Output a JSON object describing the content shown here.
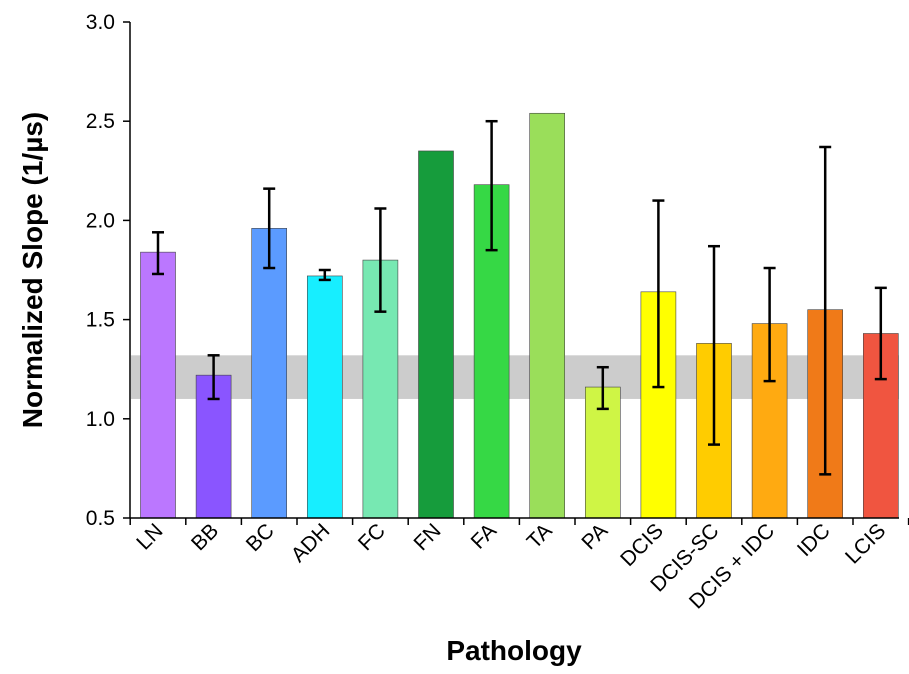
{
  "chart_data": {
    "type": "bar",
    "title": "",
    "xlabel": "Pathology",
    "ylabel": "Normalized Slope (1/µs)",
    "ylim": [
      0.5,
      3.0
    ],
    "yticks": [
      0.5,
      1.0,
      1.5,
      2.0,
      2.5,
      3.0
    ],
    "ytick_labels": [
      "0.5",
      "1.0",
      "1.5",
      "2.0",
      "2.5",
      "3.0"
    ],
    "grid": false,
    "reference_band": {
      "y_low": 1.1,
      "y_high": 1.32,
      "color": "#cccccc"
    },
    "categories": [
      "LN",
      "BB",
      "BC",
      "ADH",
      "FC",
      "FN",
      "FA",
      "TA",
      "PA",
      "DCIS",
      "DCIS-SC",
      "DCIS + IDC",
      "IDC",
      "LCIS"
    ],
    "values": [
      1.84,
      1.22,
      1.96,
      1.72,
      1.8,
      2.35,
      2.18,
      2.54,
      1.16,
      1.64,
      1.38,
      1.48,
      1.55,
      1.43
    ],
    "error_low": [
      1.73,
      1.1,
      1.76,
      1.7,
      1.54,
      null,
      1.85,
      null,
      1.05,
      1.16,
      0.87,
      1.19,
      0.72,
      1.2
    ],
    "error_high": [
      1.94,
      1.32,
      2.16,
      1.75,
      2.06,
      null,
      2.5,
      null,
      1.26,
      2.1,
      1.87,
      1.76,
      2.37,
      1.66
    ],
    "colors": [
      "#bb77ff",
      "#8a55ff",
      "#5b9bff",
      "#17eeff",
      "#77e8b2",
      "#169c3c",
      "#36d845",
      "#9ade5a",
      "#cff545",
      "#ffff00",
      "#ffcc00",
      "#ffaa11",
      "#f07a18",
      "#f05540"
    ]
  }
}
